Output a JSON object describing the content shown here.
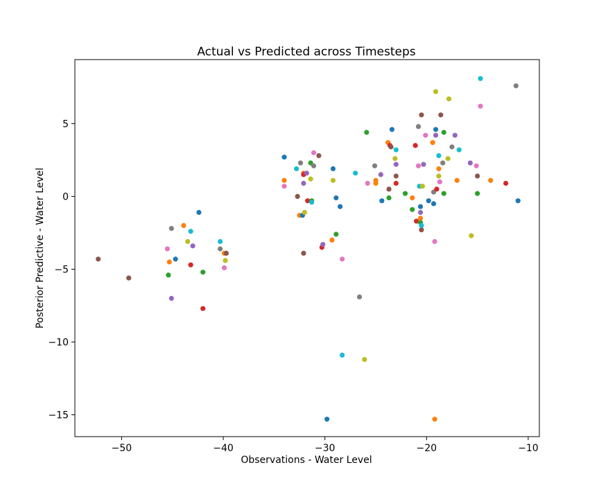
{
  "chart_data": {
    "type": "scatter",
    "title": "Actual vs Predicted across Timesteps",
    "xlabel": "Observations - Water Level",
    "ylabel": "Posterior Predictive - Water Level",
    "xlim": [
      -54.6,
      -8.9
    ],
    "ylim": [
      -16.5,
      9.4
    ],
    "xticks": [
      -50,
      -40,
      -30,
      -20,
      -10
    ],
    "yticks": [
      5,
      0,
      -5,
      -10,
      -15
    ],
    "grid": false,
    "palette": [
      "#1f77b4",
      "#ff7f0e",
      "#2ca02c",
      "#d62728",
      "#9467bd",
      "#8c564b",
      "#e377c2",
      "#7f7f7f",
      "#bcbd22",
      "#17becf"
    ],
    "points": [
      {
        "x": -52.3,
        "y": -4.3,
        "c": 5
      },
      {
        "x": -49.3,
        "y": -5.6,
        "c": 5
      },
      {
        "x": -45.5,
        "y": -3.6,
        "c": 6
      },
      {
        "x": -45.3,
        "y": -4.5,
        "c": 1
      },
      {
        "x": -45.4,
        "y": -5.4,
        "c": 2
      },
      {
        "x": -45.1,
        "y": -2.2,
        "c": 7
      },
      {
        "x": -45.1,
        "y": -7.0,
        "c": 4
      },
      {
        "x": -44.7,
        "y": -4.3,
        "c": 0
      },
      {
        "x": -43.9,
        "y": -2.0,
        "c": 1
      },
      {
        "x": -43.5,
        "y": -3.1,
        "c": 8
      },
      {
        "x": -43.2,
        "y": -2.4,
        "c": 9
      },
      {
        "x": -43.2,
        "y": -4.7,
        "c": 3
      },
      {
        "x": -43.0,
        "y": -3.4,
        "c": 4
      },
      {
        "x": -42.4,
        "y": -1.1,
        "c": 0
      },
      {
        "x": -42.0,
        "y": -5.2,
        "c": 2
      },
      {
        "x": -42.0,
        "y": -7.7,
        "c": 3
      },
      {
        "x": -40.3,
        "y": -3.1,
        "c": 9
      },
      {
        "x": -40.3,
        "y": -3.6,
        "c": 7
      },
      {
        "x": -39.9,
        "y": -3.9,
        "c": 1
      },
      {
        "x": -39.8,
        "y": -4.4,
        "c": 8
      },
      {
        "x": -39.9,
        "y": -4.9,
        "c": 6
      },
      {
        "x": -39.7,
        "y": -3.9,
        "c": 5
      },
      {
        "x": -34.0,
        "y": 2.7,
        "c": 0
      },
      {
        "x": -34.0,
        "y": 1.1,
        "c": 1
      },
      {
        "x": -34.0,
        "y": 0.7,
        "c": 6
      },
      {
        "x": -32.8,
        "y": 1.9,
        "c": 9
      },
      {
        "x": -32.7,
        "y": 0.0,
        "c": 5
      },
      {
        "x": -32.4,
        "y": 2.3,
        "c": 7
      },
      {
        "x": -32.5,
        "y": -1.3,
        "c": 1
      },
      {
        "x": -32.2,
        "y": -1.3,
        "c": 0
      },
      {
        "x": -32.1,
        "y": 1.6,
        "c": 1
      },
      {
        "x": -32.1,
        "y": 1.5,
        "c": 3
      },
      {
        "x": -32.1,
        "y": 0.9,
        "c": 4
      },
      {
        "x": -32.0,
        "y": -1.1,
        "c": 8
      },
      {
        "x": -31.8,
        "y": 1.6,
        "c": 4
      },
      {
        "x": -32.1,
        "y": -3.9,
        "c": 5
      },
      {
        "x": -31.7,
        "y": -0.3,
        "c": 3
      },
      {
        "x": -31.4,
        "y": 2.3,
        "c": 2
      },
      {
        "x": -31.4,
        "y": 1.2,
        "c": 8
      },
      {
        "x": -31.3,
        "y": -0.3,
        "c": 2
      },
      {
        "x": -31.3,
        "y": -0.4,
        "c": 9
      },
      {
        "x": -31.1,
        "y": 3.0,
        "c": 6
      },
      {
        "x": -31.1,
        "y": 2.1,
        "c": 7
      },
      {
        "x": -30.6,
        "y": 2.8,
        "c": 5
      },
      {
        "x": -30.3,
        "y": -3.5,
        "c": 3
      },
      {
        "x": -30.2,
        "y": -3.3,
        "c": 4
      },
      {
        "x": -29.8,
        "y": -15.3,
        "c": 0
      },
      {
        "x": -29.3,
        "y": -3.0,
        "c": 1
      },
      {
        "x": -29.2,
        "y": 1.9,
        "c": 0
      },
      {
        "x": -29.2,
        "y": 1.1,
        "c": 8
      },
      {
        "x": -28.9,
        "y": -0.1,
        "c": 0
      },
      {
        "x": -28.9,
        "y": -2.6,
        "c": 2
      },
      {
        "x": -28.5,
        "y": -0.7,
        "c": 0
      },
      {
        "x": -28.3,
        "y": -4.3,
        "c": 6
      },
      {
        "x": -28.3,
        "y": -10.9,
        "c": 9
      },
      {
        "x": -27.0,
        "y": 1.6,
        "c": 9
      },
      {
        "x": -26.6,
        "y": -6.9,
        "c": 7
      },
      {
        "x": -26.1,
        "y": -11.2,
        "c": 8
      },
      {
        "x": -25.9,
        "y": 4.4,
        "c": 2
      },
      {
        "x": -25.8,
        "y": 0.9,
        "c": 6
      },
      {
        "x": -25.1,
        "y": 2.1,
        "c": 7
      },
      {
        "x": -25.0,
        "y": 1.1,
        "c": 1
      },
      {
        "x": -25.0,
        "y": 0.9,
        "c": 1
      },
      {
        "x": -24.5,
        "y": 1.5,
        "c": 4
      },
      {
        "x": -24.4,
        "y": -0.3,
        "c": 0
      },
      {
        "x": -23.8,
        "y": 3.7,
        "c": 1
      },
      {
        "x": -23.7,
        "y": 0.5,
        "c": 5
      },
      {
        "x": -23.7,
        "y": -0.1,
        "c": 2
      },
      {
        "x": -23.6,
        "y": 3.5,
        "c": 3
      },
      {
        "x": -23.5,
        "y": 3.4,
        "c": 5
      },
      {
        "x": -23.4,
        "y": 4.6,
        "c": 0
      },
      {
        "x": -23.1,
        "y": 2.6,
        "c": 8
      },
      {
        "x": -23.0,
        "y": 3.2,
        "c": 9
      },
      {
        "x": -23.0,
        "y": 2.2,
        "c": 4
      },
      {
        "x": -23.0,
        "y": 1.4,
        "c": 5
      },
      {
        "x": -23.0,
        "y": 0.9,
        "c": 3
      },
      {
        "x": -22.1,
        "y": 0.2,
        "c": 2
      },
      {
        "x": -21.4,
        "y": -0.1,
        "c": 1
      },
      {
        "x": -21.4,
        "y": -0.9,
        "c": 2
      },
      {
        "x": -21.1,
        "y": 3.5,
        "c": 3
      },
      {
        "x": -21.0,
        "y": -1.7,
        "c": 3
      },
      {
        "x": -20.8,
        "y": 4.8,
        "c": 7
      },
      {
        "x": -20.8,
        "y": 2.1,
        "c": 6
      },
      {
        "x": -20.7,
        "y": 0.7,
        "c": 9
      },
      {
        "x": -20.6,
        "y": -0.7,
        "c": 0
      },
      {
        "x": -20.6,
        "y": -1.1,
        "c": 4
      },
      {
        "x": -20.6,
        "y": -1.5,
        "c": 1
      },
      {
        "x": -20.6,
        "y": -1.8,
        "c": 2
      },
      {
        "x": -20.5,
        "y": -2.0,
        "c": 9
      },
      {
        "x": -20.5,
        "y": -2.3,
        "c": 5
      },
      {
        "x": -20.5,
        "y": 5.6,
        "c": 5
      },
      {
        "x": -20.4,
        "y": 0.7,
        "c": 8
      },
      {
        "x": -20.3,
        "y": 2.2,
        "c": 4
      },
      {
        "x": -20.1,
        "y": 4.2,
        "c": 6
      },
      {
        "x": -19.8,
        "y": -0.3,
        "c": 0
      },
      {
        "x": -19.4,
        "y": 3.7,
        "c": 1
      },
      {
        "x": -19.3,
        "y": 0.3,
        "c": 7
      },
      {
        "x": -19.3,
        "y": -0.5,
        "c": 0
      },
      {
        "x": -19.2,
        "y": -3.1,
        "c": 6
      },
      {
        "x": -19.2,
        "y": -15.3,
        "c": 1
      },
      {
        "x": -19.1,
        "y": 7.2,
        "c": 8
      },
      {
        "x": -19.1,
        "y": 4.6,
        "c": 0
      },
      {
        "x": -19.1,
        "y": 4.2,
        "c": 4
      },
      {
        "x": -19.0,
        "y": 0.5,
        "c": 3
      },
      {
        "x": -18.8,
        "y": 1.9,
        "c": 1
      },
      {
        "x": -18.8,
        "y": 2.8,
        "c": 9
      },
      {
        "x": -18.8,
        "y": 1.4,
        "c": 8
      },
      {
        "x": -18.7,
        "y": 1.0,
        "c": 6
      },
      {
        "x": -18.6,
        "y": 5.6,
        "c": 5
      },
      {
        "x": -18.4,
        "y": 2.3,
        "c": 7
      },
      {
        "x": -18.3,
        "y": 4.4,
        "c": 2
      },
      {
        "x": -18.3,
        "y": 0.2,
        "c": 2
      },
      {
        "x": -17.9,
        "y": 2.6,
        "c": 8
      },
      {
        "x": -17.8,
        "y": 6.7,
        "c": 8
      },
      {
        "x": -17.5,
        "y": 3.4,
        "c": 7
      },
      {
        "x": -17.2,
        "y": 4.2,
        "c": 4
      },
      {
        "x": -17.0,
        "y": 1.1,
        "c": 1
      },
      {
        "x": -16.8,
        "y": 3.2,
        "c": 9
      },
      {
        "x": -15.7,
        "y": 2.3,
        "c": 4
      },
      {
        "x": -15.6,
        "y": -2.7,
        "c": 8
      },
      {
        "x": -15.1,
        "y": 2.1,
        "c": 6
      },
      {
        "x": -15.0,
        "y": 1.4,
        "c": 5
      },
      {
        "x": -15.0,
        "y": 0.2,
        "c": 2
      },
      {
        "x": -14.7,
        "y": 8.1,
        "c": 9
      },
      {
        "x": -14.7,
        "y": 6.2,
        "c": 6
      },
      {
        "x": -13.7,
        "y": 1.1,
        "c": 1
      },
      {
        "x": -12.2,
        "y": 0.9,
        "c": 3
      },
      {
        "x": -11.2,
        "y": 7.6,
        "c": 7
      },
      {
        "x": -11.0,
        "y": -0.3,
        "c": 0
      }
    ]
  }
}
